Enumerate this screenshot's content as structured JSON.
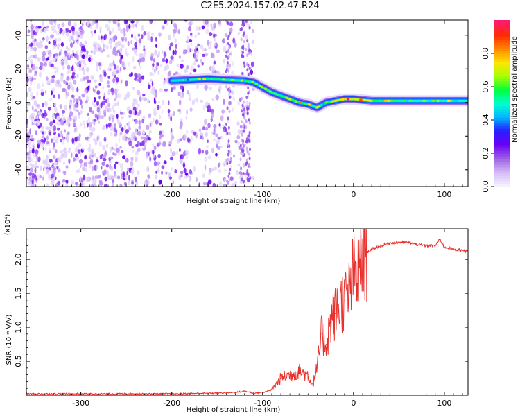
{
  "title": "C2E5.2024.157.02.47.R24",
  "colorbar": {
    "label": "Normalized spectral amplitude",
    "ticks": [
      "0.0",
      "0.2",
      "0.4",
      "0.6",
      "0.8"
    ],
    "tick_values": [
      0.0,
      0.2,
      0.4,
      0.6,
      0.8
    ],
    "range": [
      0,
      1
    ],
    "colors": [
      "#f4f0ff",
      "#d3b8f5",
      "#9b5de5",
      "#6a00f4",
      "#2a1cff",
      "#00b7ff",
      "#00ffd0",
      "#00ff3c",
      "#a8ff00",
      "#ffe600",
      "#ff8a00",
      "#ff2a00",
      "#ff1a6e"
    ]
  },
  "chart_data": [
    {
      "type": "heatmap",
      "title": "C2E5.2024.157.02.47.R24",
      "xlabel": "Height of straight line (km)",
      "ylabel": "Frequency (Hz)",
      "xlim": [
        -360,
        126
      ],
      "ylim": [
        -50,
        49
      ],
      "xticks": [
        -300,
        -200,
        -100,
        0,
        100
      ],
      "xtick_labels": [
        "-300",
        "-200",
        "-100",
        "0",
        "100"
      ],
      "yticks": [
        -40,
        -20,
        0,
        20,
        40
      ],
      "ytick_labels": [
        "-40",
        "-20",
        "0",
        "20",
        "40"
      ],
      "value_label": "Normalized spectral amplitude",
      "noise_region_x": [
        -360,
        -110
      ],
      "ridge": {
        "x": [
          -200,
          -180,
          -160,
          -140,
          -120,
          -110,
          -100,
          -90,
          -80,
          -70,
          -60,
          -50,
          -40,
          -30,
          -20,
          -10,
          0,
          20,
          40,
          60,
          80,
          100,
          126
        ],
        "y": [
          13,
          13.5,
          14,
          13.5,
          13,
          12,
          9,
          6,
          4,
          2,
          0,
          -1,
          -3,
          0,
          1,
          2,
          2,
          1,
          1,
          1,
          1,
          1,
          1
        ],
        "amplitude": [
          0.45,
          0.5,
          0.55,
          0.55,
          0.5,
          0.45,
          0.45,
          0.5,
          0.55,
          0.6,
          0.6,
          0.55,
          0.5,
          0.6,
          0.7,
          0.75,
          0.8,
          0.6,
          0.55,
          0.5,
          0.5,
          0.5,
          0.5
        ]
      }
    },
    {
      "type": "line",
      "xlabel": "Height of straight line (km)",
      "ylabel": "SNR (10 * V/V)",
      "multiplier": "(x10⁴)",
      "color": "#e8302c",
      "xlim": [
        -360,
        126
      ],
      "ylim": [
        0,
        2.45
      ],
      "xticks": [
        -300,
        -200,
        -100,
        0,
        100
      ],
      "xtick_labels": [
        "-300",
        "-200",
        "-100",
        "0",
        "100"
      ],
      "yticks": [
        0.5,
        1.0,
        1.5,
        2.0
      ],
      "ytick_labels": [
        "0.5",
        "1.0",
        "1.5",
        "2.0"
      ],
      "x": [
        -360,
        -300,
        -200,
        -150,
        -130,
        -120,
        -110,
        -100,
        -90,
        -80,
        -70,
        -60,
        -50,
        -45,
        -40,
        -35,
        -30,
        -25,
        -20,
        -15,
        -10,
        -5,
        0,
        5,
        10,
        15,
        20,
        30,
        40,
        50,
        60,
        70,
        80,
        90,
        95,
        100,
        110,
        126
      ],
      "y": [
        0.02,
        0.02,
        0.02,
        0.03,
        0.04,
        0.06,
        0.03,
        0.04,
        0.08,
        0.25,
        0.3,
        0.35,
        0.3,
        0.15,
        0.4,
        0.9,
        0.75,
        1.1,
        1.2,
        1.35,
        1.4,
        1.5,
        1.8,
        1.75,
        2.0,
        2.1,
        2.15,
        2.2,
        2.24,
        2.25,
        2.25,
        2.22,
        2.2,
        2.2,
        2.3,
        2.18,
        2.15,
        2.12
      ]
    }
  ]
}
